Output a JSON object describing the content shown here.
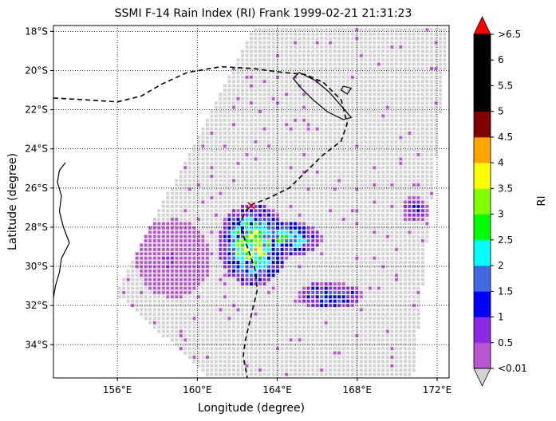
{
  "chart_data": {
    "type": "heatmap",
    "title": "SSMI F-14 Rain Index (RI) Frank 1999-02-21 21:31:23",
    "xlabel": "Longitude (degree)",
    "ylabel": "Latitude (degree)",
    "xlim": [
      152.8,
      172.6
    ],
    "ylim": [
      -35.7,
      -17.7
    ],
    "x_ticks": [
      156,
      160,
      164,
      168,
      172
    ],
    "x_tick_labels": [
      "156°E",
      "160°E",
      "164°E",
      "168°E",
      "172°E"
    ],
    "y_ticks": [
      -18,
      -20,
      -22,
      -24,
      -26,
      -28,
      -30,
      -32,
      -34
    ],
    "y_tick_labels": [
      "18°S",
      "20°S",
      "22°S",
      "24°S",
      "26°S",
      "28°S",
      "30°S",
      "32°S",
      "34°S"
    ],
    "grid": true,
    "colorbar": {
      "label": "RI",
      "bounds": [
        0.01,
        0.5,
        1,
        1.5,
        2,
        2.5,
        3,
        3.5,
        4,
        4.5,
        5,
        5.5,
        6,
        6.5
      ],
      "tick_labels": [
        "<0.01",
        "0.5",
        "1",
        "1.5",
        "2",
        "2.5",
        "3",
        "3.5",
        "4",
        "4.5",
        "5",
        "5.5",
        "6",
        ">6.5"
      ],
      "colors": [
        "#ba55d3",
        "#8a2be2",
        "#0000ff",
        "#4169e1",
        "#00ffff",
        "#00ff00",
        "#7fff00",
        "#ffff00",
        "#ffa500",
        "#800000",
        "#000000",
        "#000000",
        "#000000"
      ],
      "under_color": "#d3d3d3",
      "over_color": "#ff0000"
    },
    "swath_corners": [
      [
        162.9,
        -17.7
      ],
      [
        172.6,
        -17.7
      ],
      [
        170.8,
        -35.7
      ],
      [
        160.7,
        -35.7
      ],
      [
        155.9,
        -31.4
      ]
    ],
    "track": [
      [
        152.8,
        -21.4
      ],
      [
        154.5,
        -21.5
      ],
      [
        156,
        -21.6
      ],
      [
        157.2,
        -21.3
      ],
      [
        158.2,
        -20.7
      ],
      [
        159.5,
        -20.1
      ],
      [
        161.2,
        -19.8
      ],
      [
        162.8,
        -19.9
      ],
      [
        164.3,
        -20.1
      ],
      [
        165.4,
        -20.2
      ],
      [
        166.3,
        -20.6
      ],
      [
        167.2,
        -21.5
      ],
      [
        167.5,
        -22.7
      ],
      [
        167.2,
        -23.6
      ],
      [
        166.3,
        -24.3
      ],
      [
        165.4,
        -25.2
      ],
      [
        164.6,
        -26.0
      ],
      [
        163.6,
        -26.5
      ],
      [
        162.6,
        -26.9
      ],
      [
        162.1,
        -27.8
      ],
      [
        162.5,
        -29.0
      ],
      [
        162.9,
        -30.2
      ],
      [
        163.0,
        -31.2
      ],
      [
        162.7,
        -32.5
      ],
      [
        162.4,
        -33.8
      ],
      [
        162.3,
        -34.6
      ],
      [
        162.5,
        -35.7
      ]
    ],
    "storm_position": [
      162.7,
      -26.9
    ],
    "rain_regions": [
      {
        "lon": 162.8,
        "lat": -28.9,
        "rlon": 1.5,
        "rlat": 1.8,
        "peak": 3.2
      },
      {
        "lon": 164.5,
        "lat": -28.6,
        "rlon": 1.5,
        "rlat": 0.8,
        "peak": 2.4
      },
      {
        "lon": 166.6,
        "lat": -31.5,
        "rlon": 1.4,
        "rlat": 0.6,
        "peak": 1.9
      },
      {
        "lon": 170.9,
        "lat": -27.1,
        "rlon": 0.6,
        "rlat": 0.6,
        "peak": 1.1
      },
      {
        "lon": 158.8,
        "lat": -29.6,
        "rlon": 1.6,
        "rlat": 1.7,
        "peak": 0.45
      }
    ],
    "coastlines": [
      [
        [
          165.1,
          -20.1
        ],
        [
          165.9,
          -20.5
        ],
        [
          166.6,
          -21.1
        ],
        [
          167.2,
          -21.8
        ],
        [
          167.7,
          -22.4
        ],
        [
          167.3,
          -22.5
        ],
        [
          166.5,
          -22.1
        ],
        [
          165.8,
          -21.5
        ],
        [
          165.2,
          -20.9
        ],
        [
          164.8,
          -20.4
        ],
        [
          165.1,
          -20.1
        ]
      ],
      [
        [
          167.3,
          -20.8
        ],
        [
          167.7,
          -20.9
        ],
        [
          167.5,
          -21.2
        ],
        [
          167.2,
          -21.0
        ],
        [
          167.3,
          -20.8
        ]
      ],
      [
        [
          153.4,
          -24.7
        ],
        [
          153.1,
          -25.1
        ],
        [
          153.0,
          -25.7
        ],
        [
          153.2,
          -26.4
        ],
        [
          153.1,
          -27.2
        ],
        [
          153.3,
          -28.0
        ],
        [
          153.6,
          -28.8
        ],
        [
          153.2,
          -29.6
        ],
        [
          153.1,
          -30.3
        ],
        [
          152.9,
          -31.0
        ],
        [
          152.8,
          -31.6
        ]
      ]
    ]
  }
}
